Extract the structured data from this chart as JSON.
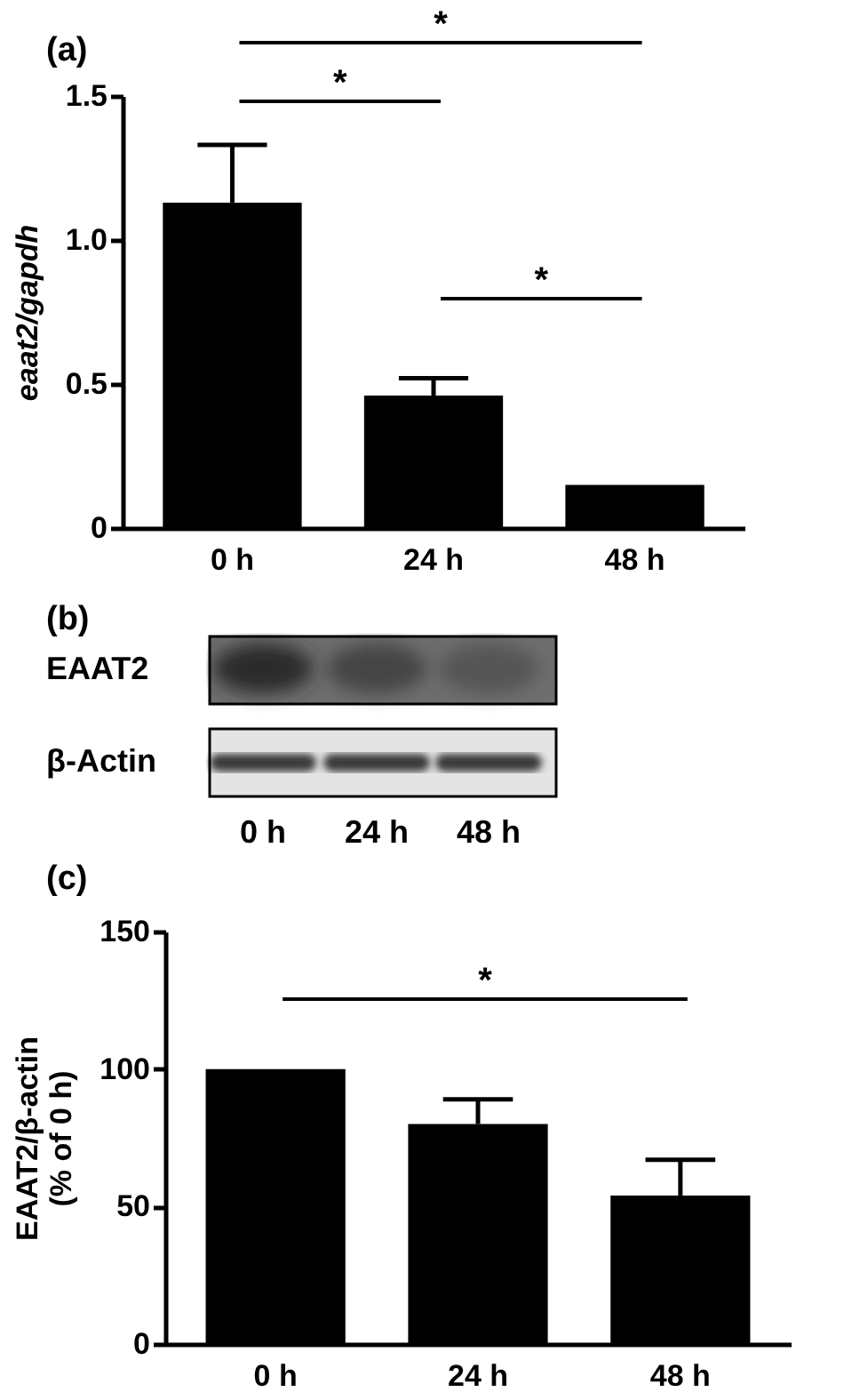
{
  "chart_data": [
    {
      "type": "bar",
      "title": "(a)",
      "ylabel": "eaat2/gapdh",
      "categories": [
        "0 h",
        "24 h",
        "48 h"
      ],
      "values": [
        1.13,
        0.46,
        0.15
      ],
      "color": "#000000",
      "errors": [
        [
          1.13,
          1.33
        ],
        [
          0.46,
          0.52
        ],
        null
      ],
      "ylim": [
        0,
        1.5
      ],
      "yticks": [
        0,
        0.5,
        {
          "value": 1,
          "label": "1.0"
        },
        1.5
      ],
      "annotations": [
        "*",
        "*",
        "*"
      ]
    },
    {
      "type": "other",
      "title": "(b)",
      "categories": [
        "0 h",
        "24 h",
        "48 h"
      ],
      "annotations": [
        "EAAT2",
        "β-Actin"
      ]
    },
    {
      "type": "bar",
      "title": "(c)",
      "ylabel": "EAAT2/β-actin\n(% of 0 h)",
      "categories": [
        "0 h",
        "24 h",
        "48 h"
      ],
      "values": [
        100,
        80,
        54
      ],
      "color": "#000000",
      "errors": [
        null,
        [
          80,
          89
        ],
        [
          54,
          67
        ]
      ],
      "ylim": [
        0,
        150
      ],
      "yticks": [
        0,
        50,
        100,
        150
      ],
      "annotations": [
        "*"
      ]
    }
  ]
}
